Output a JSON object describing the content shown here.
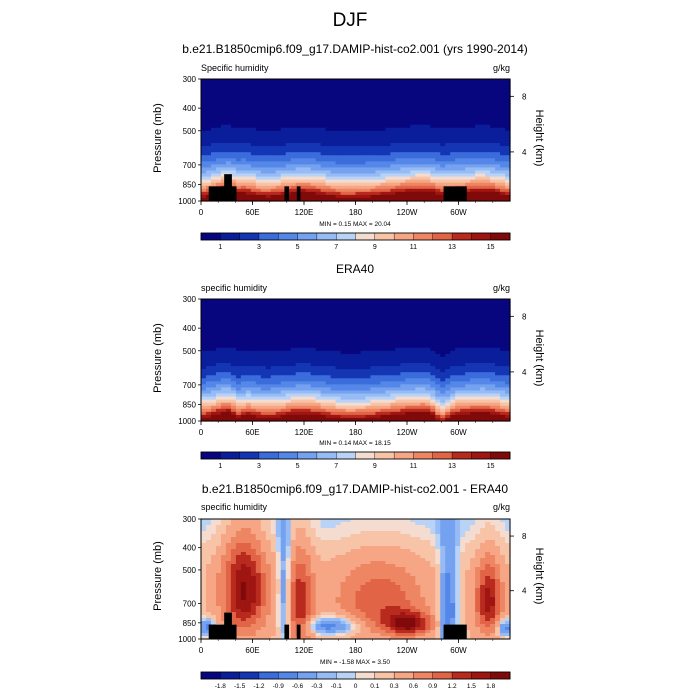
{
  "figure_title": "DJF",
  "palette": [
    "#08067f",
    "#0a1e9c",
    "#1436b5",
    "#2452cb",
    "#3a6cdc",
    "#5587e8",
    "#75a2f0",
    "#97bcf5",
    "#b9d3f7",
    "#d8e5f4",
    "#f4dcd0",
    "#f8c4a8",
    "#f6a684",
    "#ee8663",
    "#e26446",
    "#d0432e",
    "#b92a1e",
    "#9e1512",
    "#800a0a"
  ],
  "chart_data": [
    {
      "type": "contour",
      "title": "b.e21.B1850cmip6.f09_g17.DAMIP-hist-co2.001 (yrs 1990-2014)",
      "variable_label": "Specific humidity",
      "units": "g/kg",
      "ylabel": "Pressure (mb)",
      "ylabel_right": "Height (km)",
      "x_ticks": [
        "0",
        "60E",
        "120E",
        "180",
        "120W",
        "60W"
      ],
      "y_ticks": [
        "300",
        "400",
        "500",
        "700",
        "850",
        "1000"
      ],
      "y_right_ticks": [
        "8",
        "4"
      ],
      "min_max_text": "MIN =   0.15  MAX =  20.04",
      "colorbar_labels": [
        "1",
        "3",
        "5",
        "7",
        "9",
        "11",
        "13",
        "15"
      ],
      "levels": [
        1,
        2,
        3,
        4,
        5,
        6,
        7,
        8,
        9,
        10,
        11,
        12,
        13,
        14,
        15
      ],
      "min": 0.15,
      "max": 20.04,
      "field": "specific_humidity",
      "topography": true
    },
    {
      "type": "contour",
      "title": "ERA40",
      "variable_label": "specific humidity",
      "units": "g/kg",
      "ylabel": "Pressure (mb)",
      "ylabel_right": "Height (km)",
      "x_ticks": [
        "0",
        "60E",
        "120E",
        "180",
        "120W",
        "60W"
      ],
      "y_ticks": [
        "300",
        "400",
        "500",
        "700",
        "850",
        "1000"
      ],
      "y_right_ticks": [
        "8",
        "4"
      ],
      "min_max_text": "MIN =   0.14  MAX =  18.15",
      "colorbar_labels": [
        "1",
        "3",
        "5",
        "7",
        "9",
        "11",
        "13",
        "15"
      ],
      "levels": [
        1,
        2,
        3,
        4,
        5,
        6,
        7,
        8,
        9,
        10,
        11,
        12,
        13,
        14,
        15
      ],
      "min": 0.14,
      "max": 18.15,
      "field": "specific_humidity",
      "topography": false
    },
    {
      "type": "contour",
      "title": "b.e21.B1850cmip6.f09_g17.DAMIP-hist-co2.001 - ERA40",
      "variable_label": "specific humidity",
      "units": "g/kg",
      "ylabel": "Pressure (mb)",
      "ylabel_right": "Height (km)",
      "x_ticks": [
        "0",
        "60E",
        "120E",
        "180",
        "120W",
        "60W"
      ],
      "y_ticks": [
        "300",
        "400",
        "500",
        "700",
        "850",
        "1000"
      ],
      "y_right_ticks": [
        "8",
        "4"
      ],
      "min_max_text": "MIN =  -1.58  MAX =   3.50",
      "colorbar_labels": [
        "-1.8",
        "-1.5",
        "-1.2",
        "-0.9",
        "-0.6",
        "-0.3",
        "-0.1",
        "0",
        "0.1",
        "0.3",
        "0.6",
        "0.9",
        "1.2",
        "1.5",
        "1.8"
      ],
      "levels": [
        -1.8,
        -1.5,
        -1.2,
        -0.9,
        -0.6,
        -0.3,
        -0.1,
        0,
        0.1,
        0.3,
        0.6,
        0.9,
        1.2,
        1.5,
        1.8
      ],
      "min": -1.58,
      "max": 3.5,
      "field": "difference",
      "topography": true
    }
  ]
}
